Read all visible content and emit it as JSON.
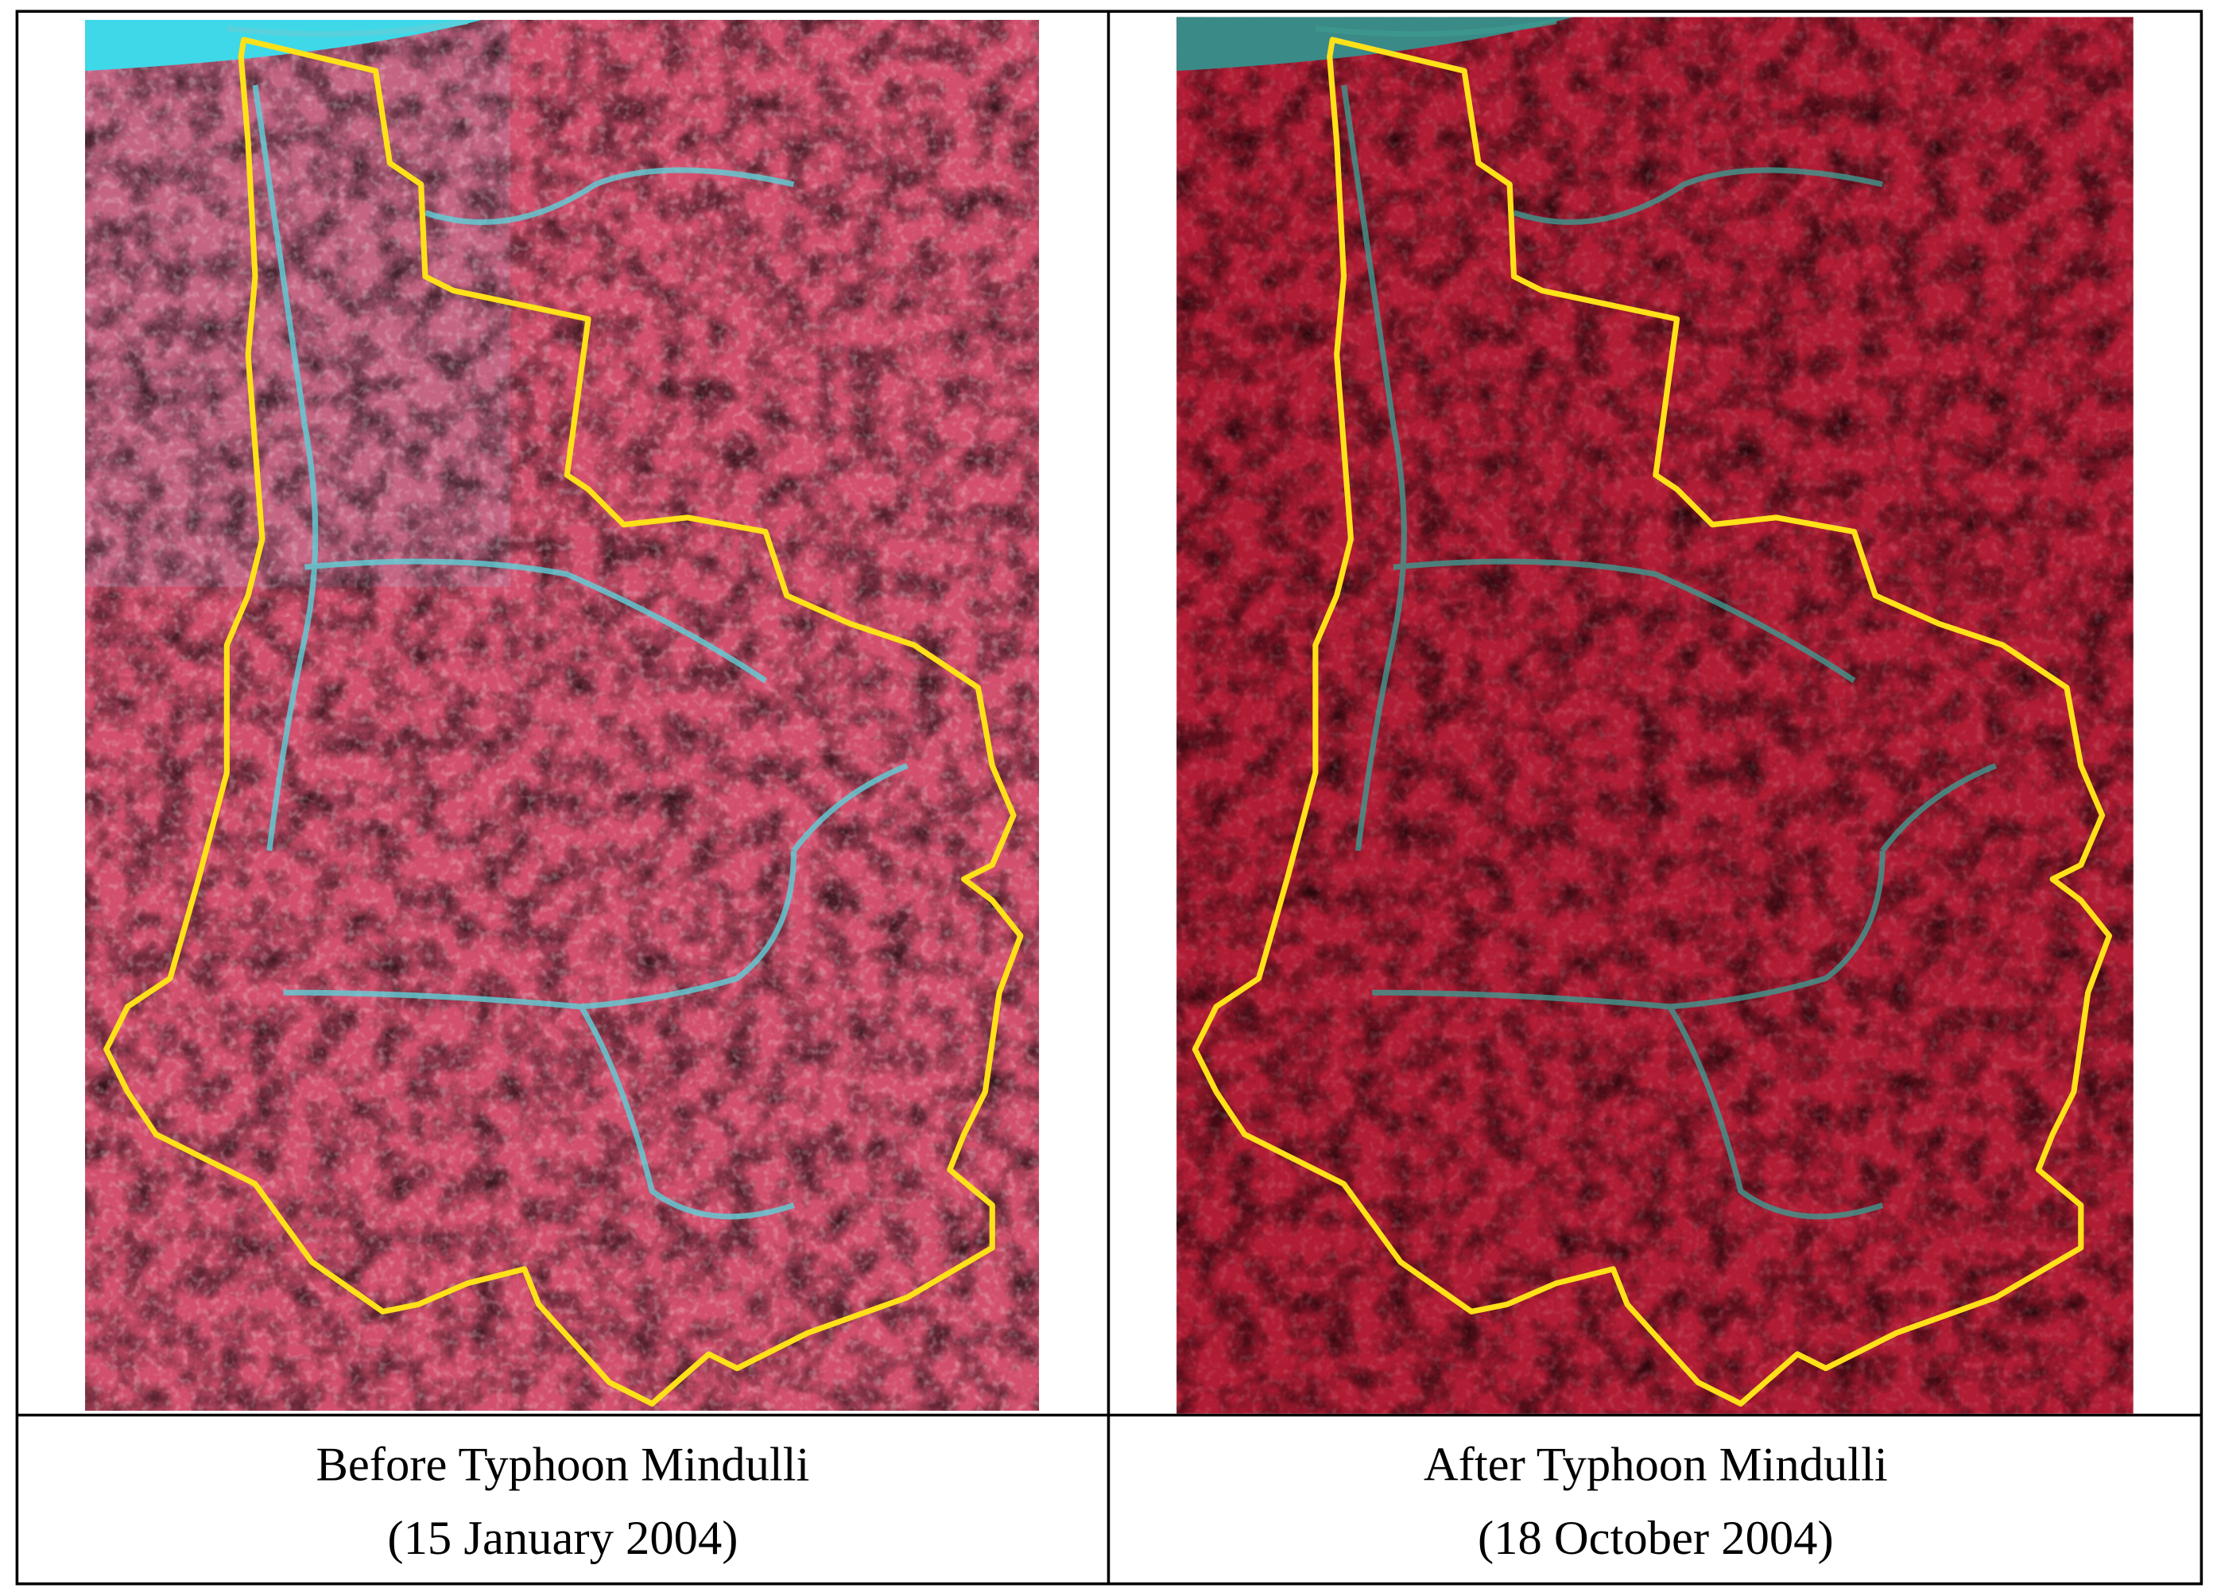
{
  "panels": [
    {
      "caption_line1": "Before Typhoon Mindulli",
      "caption_line2": "(15 January 2004)"
    },
    {
      "caption_line1": "After Typhoon Mindulli",
      "caption_line2": "(18 October 2004)"
    }
  ]
}
